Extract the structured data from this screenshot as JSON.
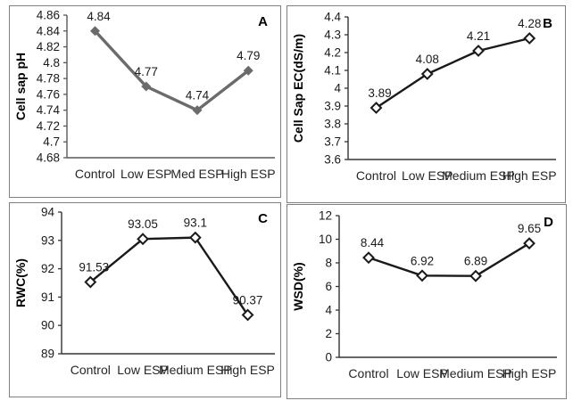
{
  "figure": {
    "description": "Four-panel line chart figure",
    "panel_letters": [
      "A",
      "B",
      "C",
      "D"
    ],
    "background_color": "#ffffff",
    "panel_border_color": "#808080"
  },
  "chart_data": [
    {
      "type": "line",
      "panel_label": "A",
      "title": "",
      "xlabel": "",
      "ylabel": "Cell sap pH",
      "categories": [
        "Control",
        "Low ESP",
        "Med ESP",
        "High ESP"
      ],
      "values": [
        4.84,
        4.77,
        4.74,
        4.79
      ],
      "point_labels": [
        "4.84",
        "4.77",
        "4.74",
        "4.79"
      ],
      "ylim": [
        4.68,
        4.86
      ],
      "yticks": [
        4.68,
        4.7,
        4.72,
        4.74,
        4.76,
        4.78,
        4.8,
        4.82,
        4.84,
        4.86
      ],
      "ytick_labels": [
        "4.68",
        "4.7",
        "4.72",
        "4.74",
        "4.76",
        "4.78",
        "4.8",
        "4.82",
        "4.84",
        "4.86"
      ],
      "grid": false,
      "legend": false,
      "line_color": "#6b6b6b",
      "marker": "filled-diamond",
      "marker_color": "#6b6b6b",
      "axis_color": "#595959"
    },
    {
      "type": "line",
      "panel_label": "B",
      "title": "",
      "xlabel": "",
      "ylabel": "Cell Sap EC(dS/m)",
      "categories": [
        "Control",
        "Low ESP",
        "Medium ESP",
        "High ESP"
      ],
      "values": [
        3.89,
        4.08,
        4.21,
        4.28
      ],
      "point_labels": [
        "3.89",
        "4.08",
        "4.21",
        "4.28"
      ],
      "ylim": [
        3.6,
        4.4
      ],
      "yticks": [
        3.6,
        3.7,
        3.8,
        3.9,
        4,
        4.1,
        4.2,
        4.3,
        4.4
      ],
      "ytick_labels": [
        "3.6",
        "3.7",
        "3.8",
        "3.9",
        "4",
        "4.1",
        "4.2",
        "4.3",
        "4.4"
      ],
      "grid": false,
      "legend": false,
      "line_color": "#1a1a1a",
      "marker": "open-diamond",
      "marker_color": "#ffffff",
      "axis_color": "#333333"
    },
    {
      "type": "line",
      "panel_label": "C",
      "title": "",
      "xlabel": "",
      "ylabel": "RWC(%)",
      "categories": [
        "Control",
        "Low ESP",
        "Medium ESP",
        "High ESP"
      ],
      "values": [
        91.53,
        93.05,
        93.1,
        90.37
      ],
      "point_labels": [
        "91.53",
        "93.05",
        "93.1",
        "90.37"
      ],
      "ylim": [
        89,
        94
      ],
      "yticks": [
        89,
        90,
        91,
        92,
        93,
        94
      ],
      "ytick_labels": [
        "89",
        "90",
        "91",
        "92",
        "93",
        "94"
      ],
      "grid": false,
      "legend": false,
      "line_color": "#1a1a1a",
      "marker": "open-diamond",
      "marker_color": "#ffffff",
      "axis_color": "#333333"
    },
    {
      "type": "line",
      "panel_label": "D",
      "title": "",
      "xlabel": "",
      "ylabel": "WSD(%)",
      "categories": [
        "Control",
        "Low ESP",
        "Medium ESP",
        "High ESP"
      ],
      "values": [
        8.44,
        6.92,
        6.89,
        9.65
      ],
      "point_labels": [
        "8.44",
        "6.92",
        "6.89",
        "9.65"
      ],
      "ylim": [
        0,
        12
      ],
      "yticks": [
        0,
        2,
        4,
        6,
        8,
        10,
        12
      ],
      "ytick_labels": [
        "0",
        "2",
        "4",
        "6",
        "8",
        "10",
        "12"
      ],
      "grid": false,
      "legend": false,
      "line_color": "#1a1a1a",
      "marker": "open-diamond",
      "marker_color": "#ffffff",
      "axis_color": "#333333"
    }
  ]
}
